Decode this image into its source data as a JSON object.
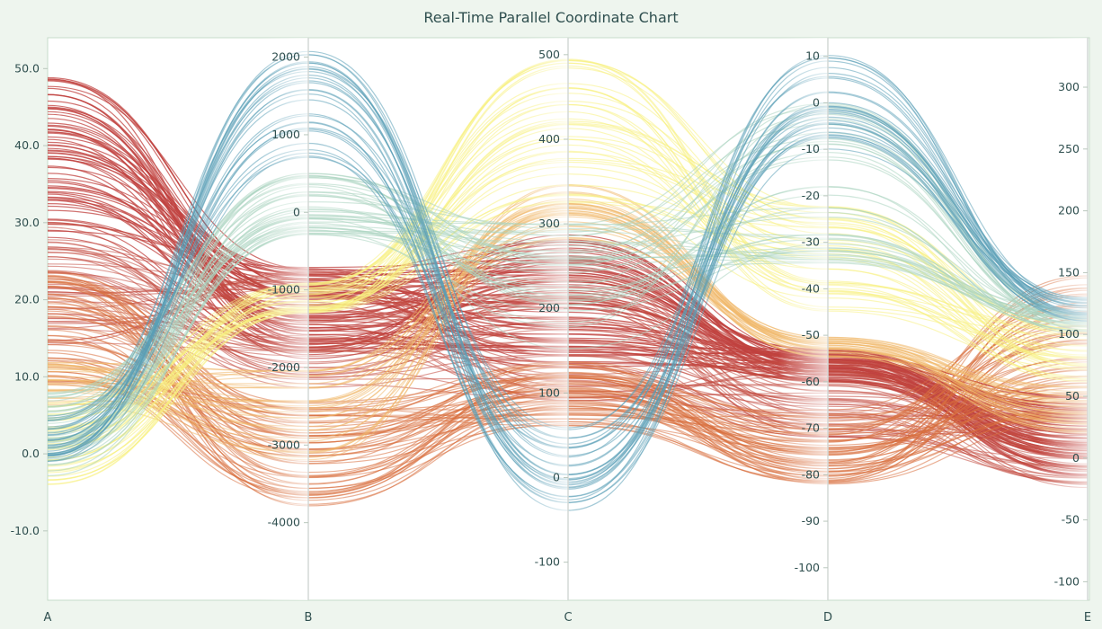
{
  "chart_data": {
    "type": "parallel-coordinates",
    "title": "Real-Time Parallel Coordinate Chart",
    "dimensions": [
      {
        "name": "A",
        "range": [
          -19,
          54
        ],
        "ticks": [
          -10,
          0,
          10,
          20,
          30,
          40,
          50
        ],
        "tick_labels": [
          "-10.0",
          "0.0",
          "10.0",
          "20.0",
          "30.0",
          "40.0",
          "50.0"
        ]
      },
      {
        "name": "B",
        "range": [
          -5000,
          2250
        ],
        "ticks": [
          -4000,
          -3000,
          -2000,
          -1000,
          0,
          1000,
          2000
        ],
        "tick_labels": [
          "-4000",
          "-3000",
          "-2000",
          "-1000",
          "0",
          "1000",
          "2000"
        ]
      },
      {
        "name": "C",
        "range": [
          -145,
          520
        ],
        "ticks": [
          -100,
          0,
          100,
          200,
          300,
          400,
          500
        ],
        "tick_labels": [
          "-100",
          "0",
          "100",
          "200",
          "300",
          "400",
          "500"
        ]
      },
      {
        "name": "D",
        "range": [
          -107,
          14
        ],
        "ticks": [
          -100,
          -90,
          -80,
          -70,
          -60,
          -50,
          -40,
          -30,
          -20,
          -10,
          0,
          10
        ],
        "tick_labels": [
          "-100",
          "-90",
          "-80",
          "-70",
          "-60",
          "-50",
          "-40",
          "-30",
          "-20",
          "-10",
          "0",
          "10"
        ]
      },
      {
        "name": "E",
        "range": [
          -115,
          340
        ],
        "ticks": [
          -100,
          -50,
          0,
          50,
          100,
          150,
          200,
          250,
          300
        ],
        "tick_labels": [
          "-100",
          "-50",
          "0",
          "50",
          "100",
          "150",
          "200",
          "250",
          "300"
        ]
      }
    ],
    "color_by": "A",
    "color_scale": [
      "#5a9fb6",
      "#a9d4c0",
      "#f7f07f",
      "#f0b86a",
      "#d9703e",
      "#c0413f"
    ],
    "groups": [
      {
        "color": "#c0413f",
        "count": 70,
        "A": [
          28,
          49
        ],
        "B": [
          -1900,
          -700
        ],
        "C": [
          130,
          290
        ],
        "D": [
          -60,
          -53
        ],
        "E": [
          -15,
          50
        ]
      },
      {
        "color": "#c24a40",
        "count": 50,
        "A": [
          14,
          30
        ],
        "B": [
          -2300,
          -700
        ],
        "C": [
          90,
          240
        ],
        "D": [
          -72,
          -55
        ],
        "E": [
          -25,
          40
        ]
      },
      {
        "color": "#d9703e",
        "count": 60,
        "A": [
          9,
          24
        ],
        "B": [
          -3800,
          -2400
        ],
        "C": [
          60,
          140
        ],
        "D": [
          -82,
          -66
        ],
        "E": [
          30,
          150
        ]
      },
      {
        "color": "#f0b86a",
        "count": 30,
        "A": [
          6,
          12
        ],
        "B": [
          -3200,
          -2000
        ],
        "C": [
          280,
          350
        ],
        "D": [
          -55,
          -50
        ],
        "E": [
          20,
          60
        ]
      },
      {
        "color": "#f7f07f",
        "count": 40,
        "A": [
          -4,
          7
        ],
        "B": [
          -1300,
          -900
        ],
        "C": [
          320,
          500
        ],
        "D": [
          -45,
          -20
        ],
        "E": [
          60,
          110
        ]
      },
      {
        "color": "#a9d4c0",
        "count": 40,
        "A": [
          -3,
          8
        ],
        "B": [
          -300,
          600
        ],
        "C": [
          150,
          300
        ],
        "D": [
          -35,
          0
        ],
        "E": [
          100,
          120
        ]
      },
      {
        "color": "#5a9fb6",
        "count": 30,
        "A": [
          -1,
          5
        ],
        "B": [
          700,
          2100
        ],
        "C": [
          -40,
          60
        ],
        "D": [
          -10,
          12
        ],
        "E": [
          110,
          130
        ]
      }
    ]
  }
}
